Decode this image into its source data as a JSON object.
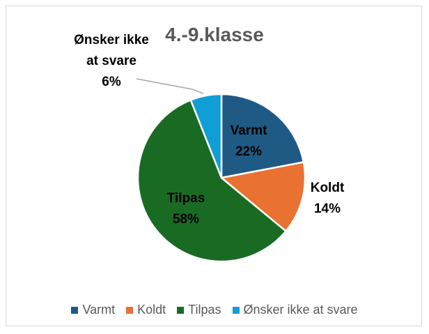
{
  "chart_data": {
    "type": "pie",
    "title": "4.-9.klasse",
    "categories": [
      "Varmt",
      "Koldt",
      "Tilpas",
      "Ønsker ikke at svare"
    ],
    "values": [
      22,
      14,
      58,
      6
    ],
    "value_labels": [
      "22%",
      "14%",
      "58%",
      "6%"
    ],
    "colors": [
      "#1f5a85",
      "#e97132",
      "#196b24",
      "#0f9ed5"
    ],
    "legend": "bottom"
  }
}
